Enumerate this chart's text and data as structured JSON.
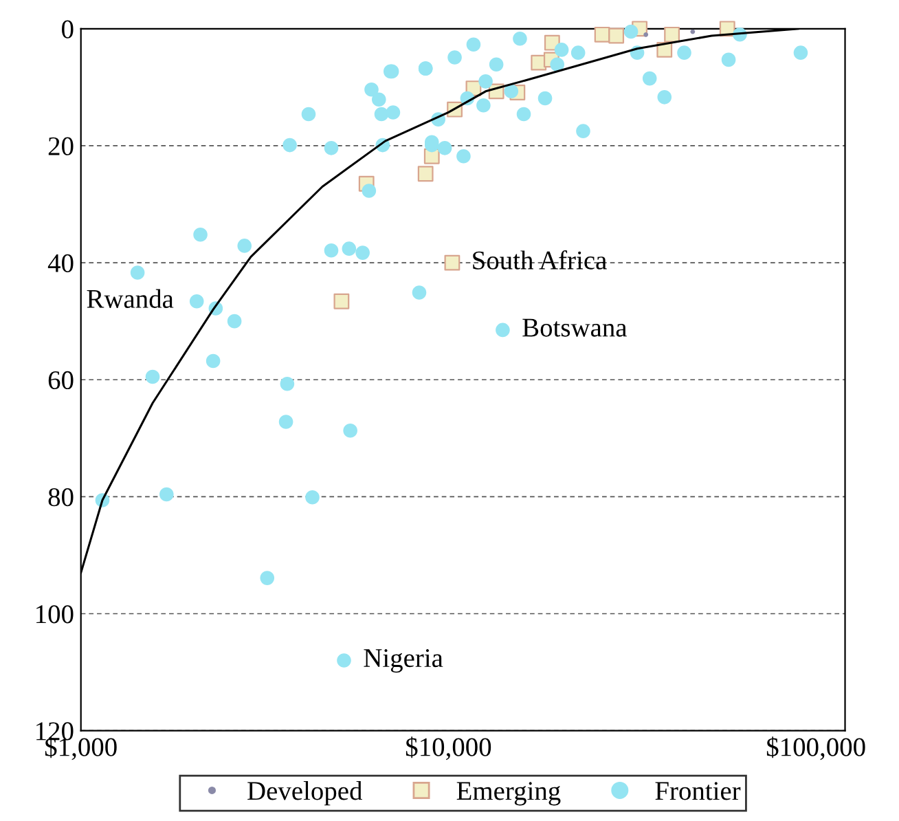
{
  "chart_data": {
    "type": "scatter",
    "log": "x",
    "xlim": [
      1000,
      120000
    ],
    "ylim": [
      120,
      0
    ],
    "xticks": [
      {
        "value": 1000,
        "label": "$1,000"
      },
      {
        "value": 10000,
        "label": "$10,000"
      },
      {
        "value": 100000,
        "label": "$100,000"
      }
    ],
    "yticks": [
      0,
      20,
      40,
      60,
      80,
      100,
      120
    ],
    "grid": "y",
    "legend": "bottom",
    "series": [
      {
        "name": "Developed",
        "color": "#8a8aa8",
        "marker": "circle",
        "x": [
          46200,
          34450
        ],
        "values": [
          0.5,
          1
        ]
      },
      {
        "name": "Emerging",
        "color": "#f3efc6",
        "marker": "square",
        "x": [
          8665,
          9011,
          10400,
          11701,
          13500,
          15410,
          17600,
          19070,
          19150,
          26200,
          28620,
          33130,
          40560,
          38710,
          57400,
          10238,
          5984,
          5118
        ],
        "values": [
          24.8,
          21.8,
          13.8,
          10.2,
          10.7,
          10.9,
          5.8,
          5.3,
          2.4,
          1,
          1.2,
          0,
          1,
          3.6,
          0,
          40,
          26.5,
          46.6
        ]
      },
      {
        "name": "Frontier",
        "color": "#94e4f2",
        "marker": "circle",
        "x": [
          6960,
          8665,
          6175,
          6469,
          6573,
          7070,
          9011,
          4164,
          3701,
          4800,
          6624,
          6079,
          2114,
          2787,
          4800,
          5365,
          5843,
          1426,
          2066,
          2327,
          2617,
          8329,
          2290,
          1567,
          3642,
          3614,
          5407,
          1144,
          1710,
          4264,
          3213,
          5198,
          7015,
          8665,
          10400,
          11701,
          15650,
          13500,
          12625,
          11255,
          12453,
          9384,
          9011,
          9773,
          10993,
          14050,
          16030,
          18320,
          14820,
          23260,
          20320,
          22540,
          19770,
          31390,
          32630,
          35280,
          38710,
          43810,
          57850,
          90880,
          62070
        ],
        "values": [
          7.3,
          6.8,
          10.4,
          12.1,
          14.6,
          14.3,
          19.9,
          14.6,
          19.9,
          20.4,
          19.9,
          27.7,
          35.2,
          37.1,
          37.9,
          37.6,
          38.3,
          41.7,
          46.6,
          47.8,
          50,
          45.1,
          56.8,
          59.5,
          60.7,
          67.2,
          68.7,
          80.6,
          79.6,
          80.1,
          93.9,
          108,
          7.3,
          6.8,
          4.9,
          2.7,
          1.7,
          6.1,
          9,
          11.9,
          13.1,
          15.5,
          19.4,
          20.4,
          21.8,
          51.5,
          14.6,
          11.9,
          10.7,
          17.5,
          3.6,
          4.1,
          6.1,
          0.5,
          4.1,
          8.5,
          11.7,
          4.1,
          5.3,
          4.1,
          1
        ]
      },
      {
        "type": "line",
        "color": "#000000",
        "x": [
          1000,
          1144,
          1567,
          2290,
          2899,
          4538,
          6730,
          10000,
          12625,
          17600,
          32630,
          52000,
          89440
        ],
        "values": [
          93,
          80.6,
          64,
          48,
          39,
          27,
          19.2,
          14.3,
          10.7,
          8.2,
          3.4,
          1.2,
          0
        ]
      }
    ],
    "annotations": [
      {
        "text": "Rwanda",
        "x": 2066,
        "y": 46.6
      },
      {
        "text": "South Africa",
        "x": 10238,
        "y": 40
      },
      {
        "text": "Botswana",
        "x": 14050,
        "y": 51.5
      },
      {
        "text": "Nigeria",
        "x": 5198,
        "y": 108
      }
    ]
  }
}
